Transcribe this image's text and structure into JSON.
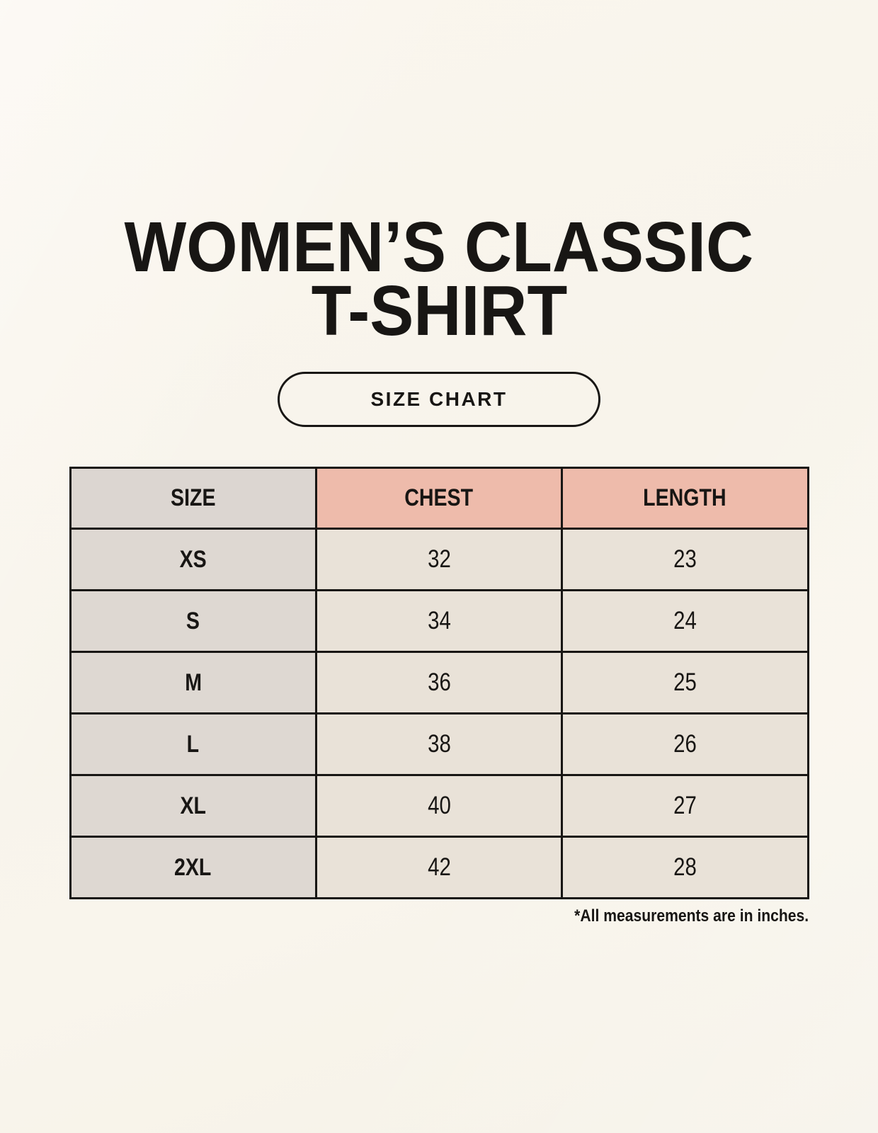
{
  "title": {
    "line1": "WOMEN’S CLASSIC",
    "line2": "T-SHIRT"
  },
  "size_chart_button": {
    "label": "SIZE CHART"
  },
  "footnote": "*All measurements are in inches.",
  "colors": {
    "background": "#f8f4eb",
    "header_size_bg": "#dcd6d1",
    "header_measurement_bg": "#eebbab",
    "row_label_bg": "#ded8d2",
    "row_value_bg": "#e9e2d8",
    "table_border": "#181614",
    "text": "#181614"
  },
  "chart_data": {
    "type": "table",
    "columns": [
      "SIZE",
      "CHEST",
      "LENGTH"
    ],
    "rows": [
      [
        "XS",
        "32",
        "23"
      ],
      [
        "S",
        "34",
        "24"
      ],
      [
        "M",
        "36",
        "25"
      ],
      [
        "L",
        "38",
        "26"
      ],
      [
        "XL",
        "40",
        "27"
      ],
      [
        "2XL",
        "42",
        "28"
      ]
    ]
  }
}
